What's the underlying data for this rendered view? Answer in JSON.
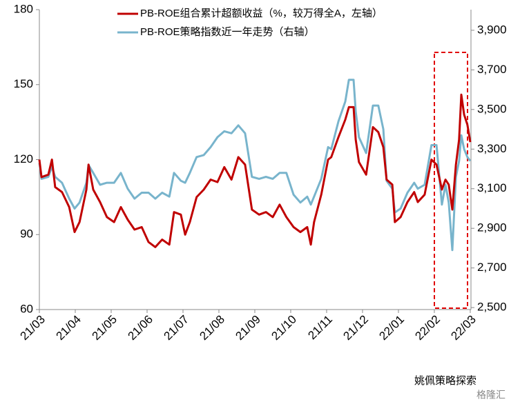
{
  "chart_data": {
    "type": "line",
    "legend_position": "top",
    "x": [
      0,
      0.06,
      0.25,
      0.35,
      0.44,
      0.63,
      0.83,
      0.98,
      1.12,
      1.31,
      1.37,
      1.5,
      1.69,
      1.88,
      2.08,
      2.27,
      2.46,
      2.65,
      2.85,
      3.04,
      3.23,
      3.42,
      3.62,
      3.75,
      3.94,
      4.06,
      4.19,
      4.38,
      4.58,
      4.77,
      4.96,
      5.15,
      5.35,
      5.54,
      5.73,
      5.92,
      6.12,
      6.31,
      6.5,
      6.69,
      6.88,
      7.08,
      7.27,
      7.46,
      7.56,
      7.65,
      7.85,
      8.04,
      8.13,
      8.33,
      8.52,
      8.62,
      8.75,
      8.81,
      8.9,
      9.1,
      9.29,
      9.44,
      9.58,
      9.67,
      9.83,
      9.9,
      10.06,
      10.25,
      10.44,
      10.54,
      10.73,
      10.92,
      11.06,
      11.21,
      11.31,
      11.4,
      11.5,
      11.6,
      11.69,
      11.75,
      11.83,
      11.92,
      12
    ],
    "series": [
      {
        "name": "PB-ROE组合累计超额收益（%，较万得全A，左轴）",
        "color": "#c00000",
        "axis": "y",
        "values": [
          120,
          113,
          114,
          120,
          109,
          107,
          101,
          91,
          95,
          108,
          118,
          108,
          103,
          97,
          95,
          101,
          96,
          92,
          93,
          87,
          85,
          88,
          86,
          99,
          98,
          90,
          95,
          105,
          108,
          112,
          111,
          117,
          112,
          121,
          118,
          100,
          98,
          99,
          97,
          102,
          97,
          93,
          91,
          93,
          86,
          95,
          106,
          120,
          121,
          129,
          136,
          141,
          141,
          128,
          119,
          114,
          133,
          131,
          125,
          112,
          110,
          95,
          97,
          103,
          107,
          103,
          106,
          120,
          118,
          108,
          112,
          110,
          100,
          118,
          128,
          146,
          138,
          134,
          127
        ]
      },
      {
        "name": "PB-ROE策略指数近一年走势（右轴）",
        "color": "#78b4cc",
        "axis": "y2",
        "values": [
          3230,
          3150,
          3160,
          3210,
          3160,
          3130,
          3050,
          3000,
          3030,
          3130,
          3220,
          3180,
          3120,
          3130,
          3130,
          3180,
          3100,
          3050,
          3080,
          3080,
          3050,
          3080,
          3060,
          3180,
          3140,
          3130,
          3180,
          3260,
          3270,
          3310,
          3360,
          3390,
          3380,
          3420,
          3380,
          3160,
          3150,
          3160,
          3150,
          3180,
          3180,
          3070,
          3030,
          3060,
          3020,
          3060,
          3150,
          3310,
          3300,
          3440,
          3540,
          3650,
          3650,
          3490,
          3360,
          3280,
          3520,
          3520,
          3400,
          3140,
          3100,
          2980,
          3000,
          3080,
          3130,
          3100,
          3120,
          3320,
          3320,
          3020,
          3120,
          3030,
          2790,
          3160,
          3240,
          3370,
          3300,
          3260,
          3240
        ]
      }
    ],
    "xlim": [
      0,
      12.02
    ],
    "xticks": [
      {
        "value": 0,
        "label": "21/03"
      },
      {
        "value": 1,
        "label": "21/04"
      },
      {
        "value": 2,
        "label": "21/05"
      },
      {
        "value": 3,
        "label": "21/06"
      },
      {
        "value": 4,
        "label": "21/07"
      },
      {
        "value": 5,
        "label": "21/08"
      },
      {
        "value": 6,
        "label": "21/09"
      },
      {
        "value": 7,
        "label": "21/10"
      },
      {
        "value": 8,
        "label": "21/11"
      },
      {
        "value": 9,
        "label": "21/12"
      },
      {
        "value": 10,
        "label": "22/01"
      },
      {
        "value": 11,
        "label": "22/02"
      },
      {
        "value": 12,
        "label": "22/03"
      }
    ],
    "ylim": [
      60,
      180
    ],
    "yticks": [
      60,
      90,
      120,
      150,
      180
    ],
    "y2lim": [
      2490,
      4004
    ],
    "y2ticks": [
      {
        "value": 2500,
        "label": "2,500"
      },
      {
        "value": 2700,
        "label": "2,700"
      },
      {
        "value": 2900,
        "label": "2,900"
      },
      {
        "value": 3100,
        "label": "3,100"
      },
      {
        "value": 3300,
        "label": "3,300"
      },
      {
        "value": 3500,
        "label": "3,500"
      },
      {
        "value": 3700,
        "label": "3,700"
      },
      {
        "value": 3900,
        "label": "3,900"
      }
    ],
    "watermark": "姚佩策略探索",
    "source_logo": "格隆汇"
  }
}
